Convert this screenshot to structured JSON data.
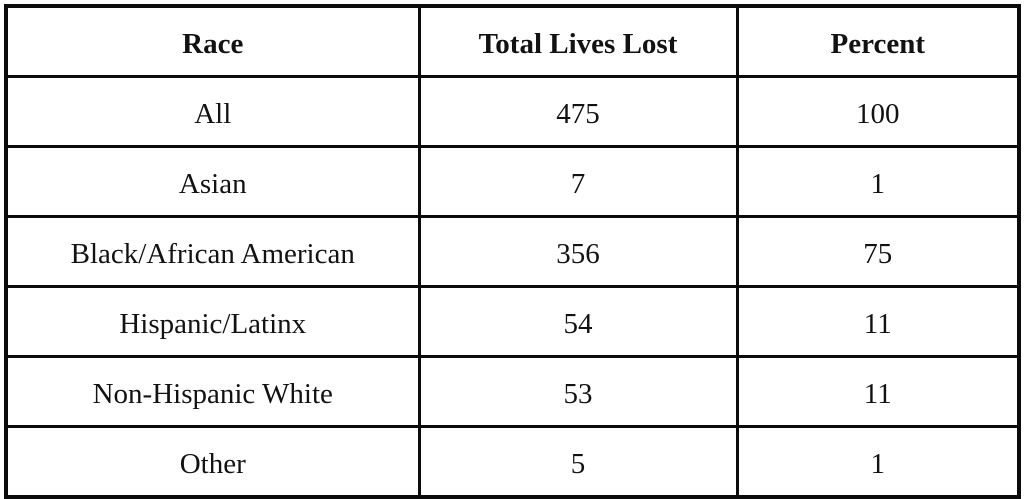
{
  "colors": {
    "background": "#ffffff",
    "border": "#0b0b0b",
    "text": "#121212"
  },
  "table": {
    "headers": [
      "Race",
      "Total Lives Lost",
      "Percent"
    ],
    "rows": [
      [
        "All",
        "475",
        "100"
      ],
      [
        "Asian",
        "7",
        "1"
      ],
      [
        "Black/African American",
        "356",
        "75"
      ],
      [
        "Hispanic/Latinx",
        "54",
        "11"
      ],
      [
        "Non-Hispanic White",
        "53",
        "11"
      ],
      [
        "Other",
        "5",
        "1"
      ]
    ]
  },
  "chart_data": {
    "type": "table",
    "title": "",
    "columns": [
      "Race",
      "Total Lives Lost",
      "Percent"
    ],
    "categories": [
      "All",
      "Asian",
      "Black/African American",
      "Hispanic/Latinx",
      "Non-Hispanic White",
      "Other"
    ],
    "series": [
      {
        "name": "Total Lives Lost",
        "values": [
          475,
          7,
          356,
          54,
          53,
          5
        ]
      },
      {
        "name": "Percent",
        "values": [
          100,
          1,
          75,
          11,
          11,
          1
        ]
      }
    ]
  }
}
